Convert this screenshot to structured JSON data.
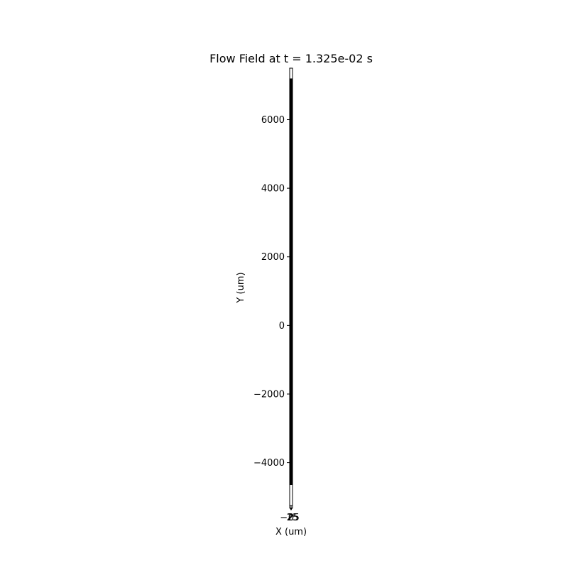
{
  "chart_data": {
    "type": "line",
    "title": "Flow Field at t = 1.325e-02 s",
    "xlabel": "X (um)",
    "ylabel": "Y (um)",
    "xlim": [
      -25,
      25
    ],
    "ylim": [
      -5250,
      7500
    ],
    "xticks": [
      {
        "value": -25,
        "label": "−25"
      },
      {
        "value": 0,
        "label": "0"
      },
      {
        "value": 25,
        "label": "25"
      }
    ],
    "yticks": [
      {
        "value": 6000,
        "label": "6000"
      },
      {
        "value": 4000,
        "label": "4000"
      },
      {
        "value": 2000,
        "label": "2000"
      },
      {
        "value": 0,
        "label": "0"
      },
      {
        "value": -2000,
        "label": "−2000"
      },
      {
        "value": -4000,
        "label": "−4000"
      }
    ],
    "filled_region": {
      "x": [
        -25,
        25
      ],
      "y": [
        -4650,
        7200
      ],
      "color": "#000000"
    },
    "arrow": {
      "x": 0,
      "y_from": -5250,
      "y_to": -5350
    },
    "grid": false
  }
}
